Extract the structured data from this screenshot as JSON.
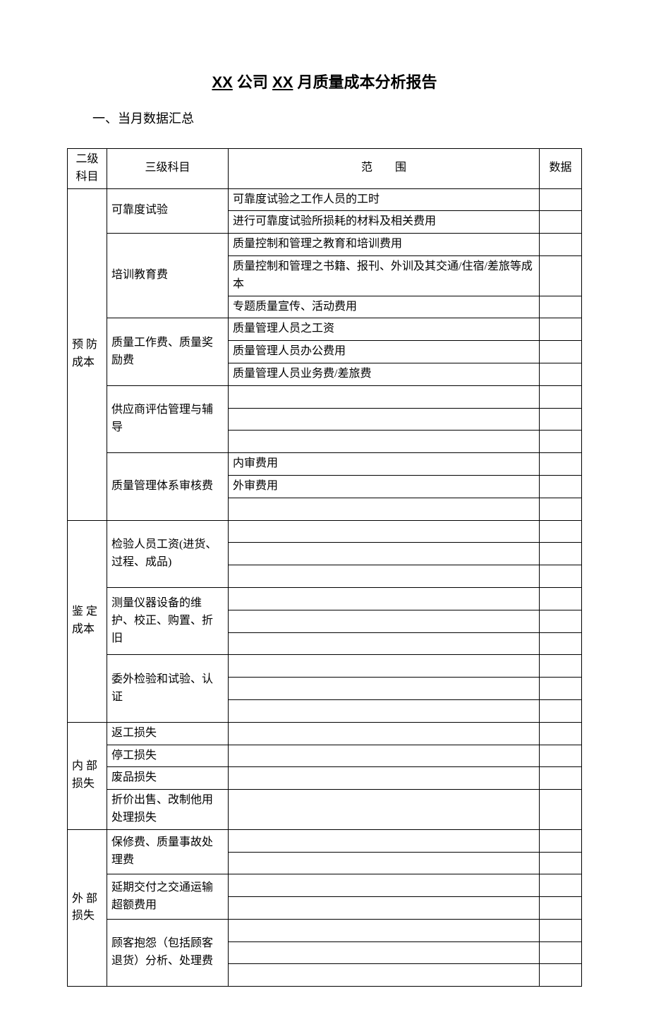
{
  "title": {
    "prefix_underlined": "XX",
    "mid1": " 公司 ",
    "mid_underlined": "XX",
    "suffix": " 月质量成本分析报告"
  },
  "section1_heading": "一、当月数据汇总",
  "headers": {
    "level2": "二级科目",
    "level3": "三级科目",
    "scope_spaced": "范　　围",
    "data": "数据"
  },
  "groups": [
    {
      "level2": "预 防成本",
      "items": [
        {
          "level3": "可靠度试验",
          "scopes": [
            "可靠度试验之工作人员的工时",
            "进行可靠度试验所损耗的材料及相关费用"
          ]
        },
        {
          "level3": "培训教育费",
          "scopes": [
            "质量控制和管理之教育和培训费用",
            "质量控制和管理之书籍、报刊、外训及其交通/住宿/差旅等成本",
            "专题质量宣传、活动费用"
          ]
        },
        {
          "level3": "质量工作费、质量奖励费",
          "scopes": [
            "质量管理人员之工资",
            "质量管理人员办公费用",
            "质量管理人员业务费/差旅费"
          ]
        },
        {
          "level3": "供应商评估管理与辅导",
          "scopes": [
            "",
            "",
            ""
          ]
        },
        {
          "level3": "质量管理体系审核费",
          "scopes": [
            "内审费用",
            "外审费用",
            ""
          ]
        }
      ]
    },
    {
      "level2": "鉴 定成本",
      "items": [
        {
          "level3": "检验人员工资(进货、过程、成品)",
          "scopes": [
            "",
            "",
            ""
          ]
        },
        {
          "level3": "测量仪器设备的维护、校正、购置、折旧",
          "scopes": [
            "",
            "",
            ""
          ]
        },
        {
          "level3": "委外检验和试验、认证",
          "scopes": [
            "",
            "",
            ""
          ]
        }
      ]
    },
    {
      "level2": "内 部损失",
      "items": [
        {
          "level3": "返工损失",
          "scopes": [
            ""
          ]
        },
        {
          "level3": "停工损失",
          "scopes": [
            ""
          ]
        },
        {
          "level3": "废品损失",
          "scopes": [
            ""
          ]
        },
        {
          "level3": "折价出售、改制他用处理损失",
          "scopes": [
            ""
          ]
        }
      ]
    },
    {
      "level2": "外 部损失",
      "items": [
        {
          "level3": "保修费、质量事故处理费",
          "scopes": [
            "",
            ""
          ]
        },
        {
          "level3": "延期交付之交通运输超额费用",
          "scopes": [
            "",
            ""
          ]
        },
        {
          "level3": "顾客抱怨（包括顾客退货）分析、处理费",
          "scopes": [
            "",
            "",
            ""
          ]
        }
      ]
    }
  ],
  "colors": {
    "text": "#000000",
    "background": "#ffffff",
    "border": "#000000"
  }
}
